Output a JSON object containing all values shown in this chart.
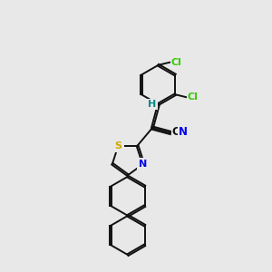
{
  "background_color": "#e8e8e8",
  "atom_colors": {
    "C": "#000000",
    "N": "#0000ee",
    "S": "#ccaa00",
    "Cl": "#33cc00",
    "H": "#008888"
  },
  "bond_color": "#111111",
  "bond_width": 1.4,
  "dbo": 0.06,
  "r_hex": 0.72,
  "r_thz": 0.6
}
